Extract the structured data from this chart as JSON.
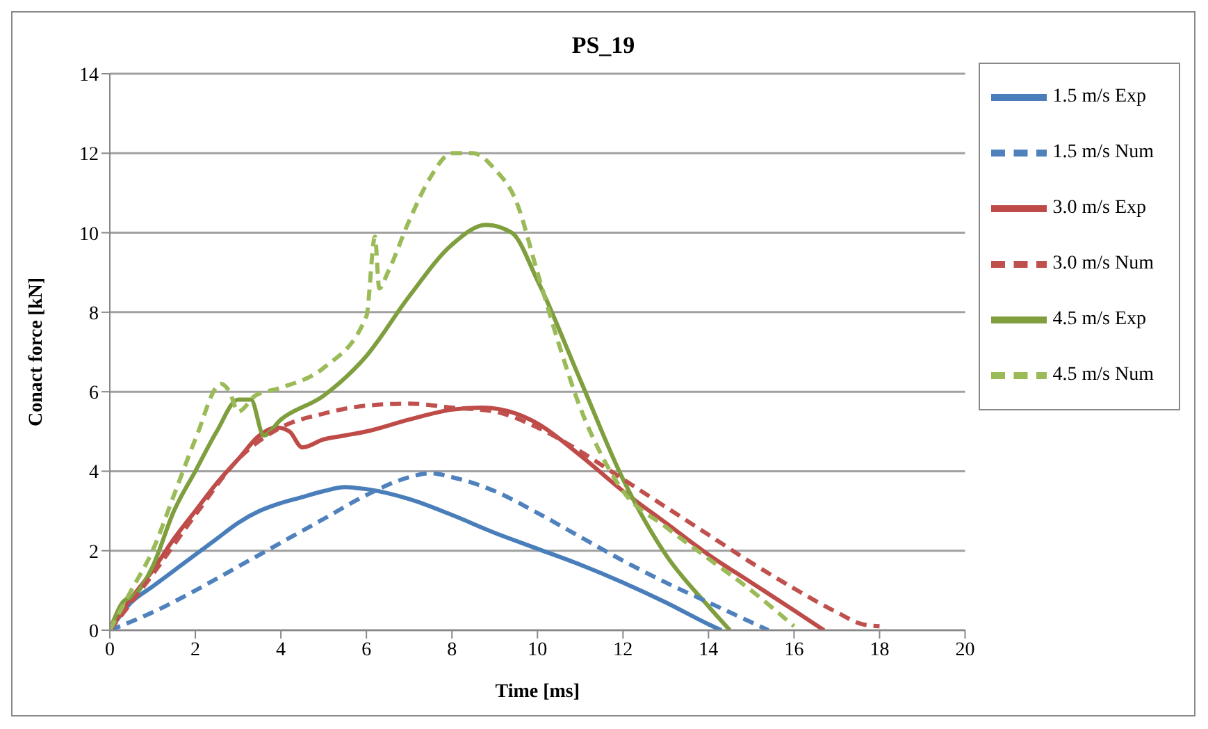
{
  "chart_data": {
    "type": "line",
    "title": "PS_19",
    "xlabel": "Time [ms]",
    "ylabel": "Conact force [kN]",
    "xlim": [
      0,
      20
    ],
    "xticks": [
      0,
      2,
      4,
      6,
      8,
      10,
      12,
      14,
      16,
      18,
      20
    ],
    "ylim": [
      0,
      14
    ],
    "yticks": [
      0,
      2,
      4,
      6,
      8,
      10,
      12,
      14
    ],
    "grid": "y",
    "legend": "top right",
    "marker": "none",
    "series": [
      {
        "name": "1.5 m/s Exp",
        "color": "#4a7ebb",
        "line_style": "solid",
        "x": [
          0,
          0.5,
          1,
          1.5,
          2,
          2.5,
          3,
          3.5,
          4,
          4.5,
          5,
          5.5,
          6,
          7,
          8,
          9,
          10,
          11,
          12,
          13,
          14,
          14.3
        ],
        "values": [
          0,
          0.7,
          1.1,
          1.5,
          1.9,
          2.3,
          2.7,
          3.0,
          3.2,
          3.35,
          3.5,
          3.6,
          3.55,
          3.3,
          2.9,
          2.45,
          2.05,
          1.65,
          1.2,
          0.7,
          0.15,
          0
        ]
      },
      {
        "name": "3.0 m/s Exp",
        "color": "#be4b48",
        "line_style": "solid",
        "x": [
          0,
          0.5,
          1,
          1.5,
          2,
          2.5,
          3,
          3.5,
          3.9,
          4.2,
          4.5,
          5,
          5.5,
          6,
          7,
          8,
          8.7,
          9.5,
          10,
          11,
          12,
          13,
          14,
          15,
          16,
          16.7
        ],
        "values": [
          0,
          0.8,
          1.5,
          2.3,
          3.0,
          3.7,
          4.3,
          4.9,
          5.1,
          5.0,
          4.6,
          4.8,
          4.9,
          5.0,
          5.3,
          5.55,
          5.6,
          5.45,
          5.2,
          4.4,
          3.5,
          2.7,
          1.9,
          1.2,
          0.5,
          0
        ]
      },
      {
        "name": "4.5 m/s Exp",
        "color": "#7f9f3f",
        "line_style": "solid",
        "x": [
          0,
          0.3,
          0.6,
          1,
          1.5,
          2,
          2.5,
          3,
          3.3,
          3.6,
          4,
          5,
          6,
          7,
          8,
          8.8,
          9.4,
          10,
          11,
          12,
          13,
          14,
          14.5
        ],
        "values": [
          0,
          0.7,
          0.9,
          1.6,
          3.0,
          4.0,
          5.0,
          5.8,
          5.8,
          4.9,
          5.3,
          5.9,
          6.9,
          8.4,
          9.7,
          10.2,
          10.0,
          8.8,
          6.3,
          3.8,
          1.9,
          0.6,
          0
        ]
      },
      {
        "name": "1.5 m/s Num",
        "color": "#4f81bd",
        "line_style": "dashed",
        "x": [
          0,
          1,
          2,
          3,
          4,
          5,
          6,
          7,
          7.5,
          8,
          9,
          10,
          11,
          12,
          13,
          14,
          15,
          15.4
        ],
        "values": [
          0,
          0.45,
          1.0,
          1.6,
          2.2,
          2.8,
          3.4,
          3.85,
          3.95,
          3.85,
          3.5,
          2.95,
          2.35,
          1.75,
          1.2,
          0.7,
          0.2,
          0
        ]
      },
      {
        "name": "3.0 m/s Num",
        "color": "#c0504d",
        "line_style": "dashed",
        "x": [
          0,
          1,
          2,
          3,
          4,
          5,
          6,
          7,
          8,
          9,
          10,
          11,
          12,
          13,
          14,
          15,
          16,
          17,
          17.6,
          18
        ],
        "values": [
          0,
          1.4,
          2.9,
          4.3,
          5.1,
          5.45,
          5.65,
          5.7,
          5.6,
          5.5,
          5.1,
          4.5,
          3.8,
          3.1,
          2.4,
          1.7,
          1.05,
          0.45,
          0.15,
          0.1
        ]
      },
      {
        "name": "4.5 m/s Num",
        "color": "#9bbb59",
        "line_style": "dashed",
        "x": [
          0,
          0.5,
          1,
          1.5,
          2,
          2.6,
          2.8,
          3.0,
          3.4,
          4,
          5,
          6,
          6.2,
          6.3,
          6.5,
          7,
          7.5,
          8,
          8.5,
          9,
          9.5,
          10,
          10.5,
          11,
          11.5,
          12,
          13,
          14,
          15,
          16
        ],
        "values": [
          0,
          1.0,
          2.0,
          3.4,
          4.8,
          6.2,
          6.0,
          5.5,
          5.9,
          6.1,
          6.6,
          7.9,
          9.9,
          8.6,
          9.0,
          10.3,
          11.4,
          12.0,
          12.0,
          11.6,
          10.8,
          9.0,
          7.2,
          5.6,
          4.4,
          3.5,
          2.6,
          1.8,
          1.0,
          0.1
        ]
      }
    ]
  }
}
